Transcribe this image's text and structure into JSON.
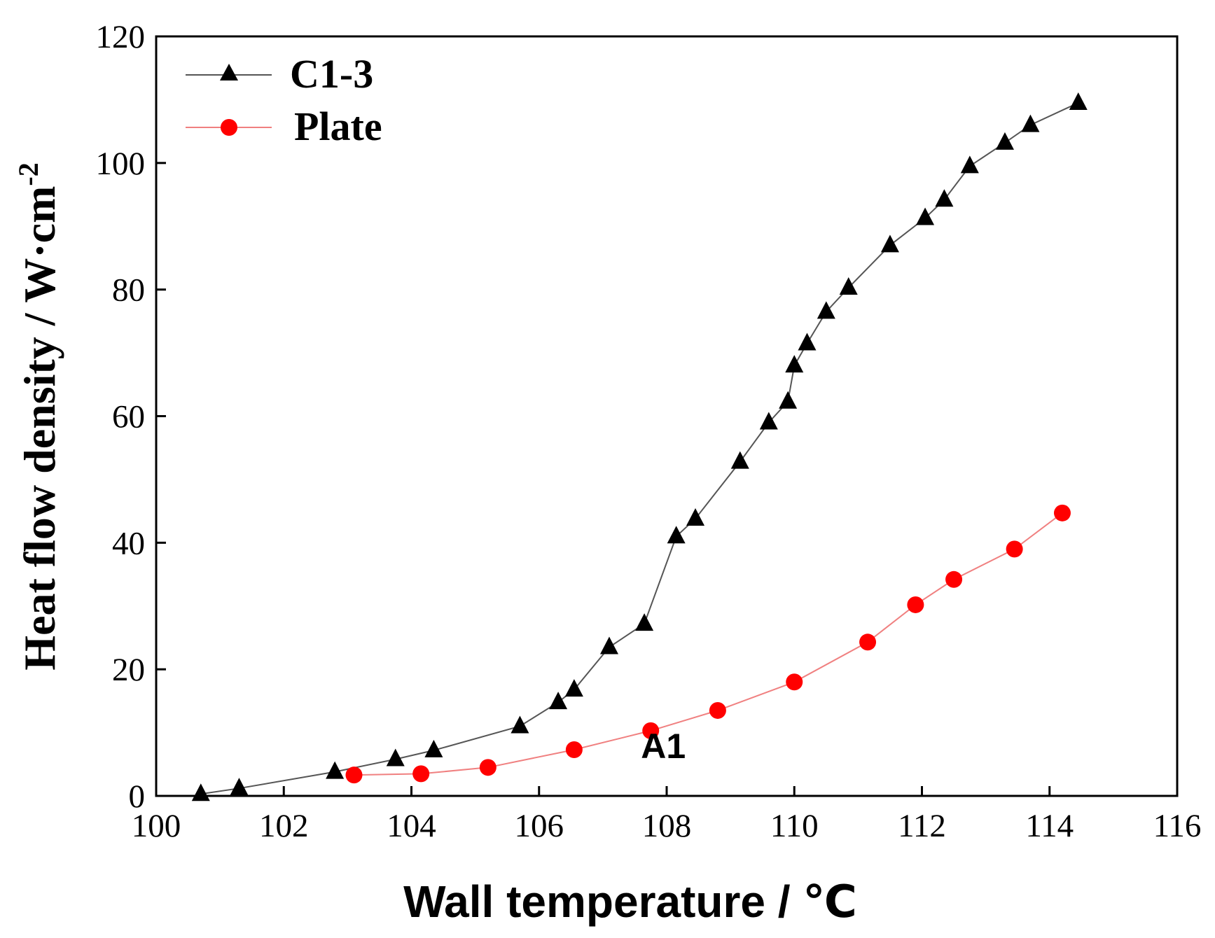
{
  "chart_data": {
    "type": "line",
    "title": "",
    "xlabel": "Wall temperature / ℃",
    "ylabel": "Heat flow density / W·cm",
    "ylabel_superscript": "-2",
    "xlim": [
      100,
      116
    ],
    "ylim": [
      0,
      120
    ],
    "xticks": [
      100,
      102,
      104,
      106,
      108,
      110,
      112,
      114,
      116
    ],
    "yticks": [
      0,
      20,
      40,
      60,
      80,
      100,
      120
    ],
    "grid": false,
    "legend_position": "top-left",
    "annotations": [
      {
        "text": "A1",
        "x": 108.2,
        "y": 7.5
      }
    ],
    "series": [
      {
        "name": "C1-3",
        "color": "#000000",
        "line_color": "#555555",
        "marker": "triangle",
        "x": [
          100.7,
          101.3,
          102.8,
          103.75,
          104.35,
          105.7,
          106.3,
          106.55,
          107.1,
          107.65,
          108.15,
          108.45,
          109.15,
          109.6,
          109.9,
          110.0,
          110.2,
          110.5,
          110.85,
          111.5,
          112.05,
          112.35,
          112.75,
          113.3,
          113.7,
          114.45
        ],
        "y": [
          0.3,
          1.2,
          3.8,
          5.8,
          7.2,
          11.0,
          14.8,
          16.8,
          23.5,
          27.2,
          41.0,
          43.8,
          52.8,
          59.0,
          62.3,
          68.0,
          71.5,
          76.5,
          80.3,
          87.0,
          91.3,
          94.2,
          99.5,
          103.2,
          106.0,
          109.5
        ]
      },
      {
        "name": "Plate",
        "color": "#ff0000",
        "line_color": "#f08080",
        "marker": "circle",
        "x": [
          103.1,
          104.15,
          105.2,
          106.55,
          107.75,
          108.8,
          110.0,
          111.15,
          111.9,
          112.5,
          113.45,
          114.2
        ],
        "y": [
          3.3,
          3.5,
          4.5,
          7.3,
          10.3,
          13.5,
          18.0,
          24.3,
          30.2,
          34.2,
          39.0,
          44.7
        ]
      }
    ]
  }
}
